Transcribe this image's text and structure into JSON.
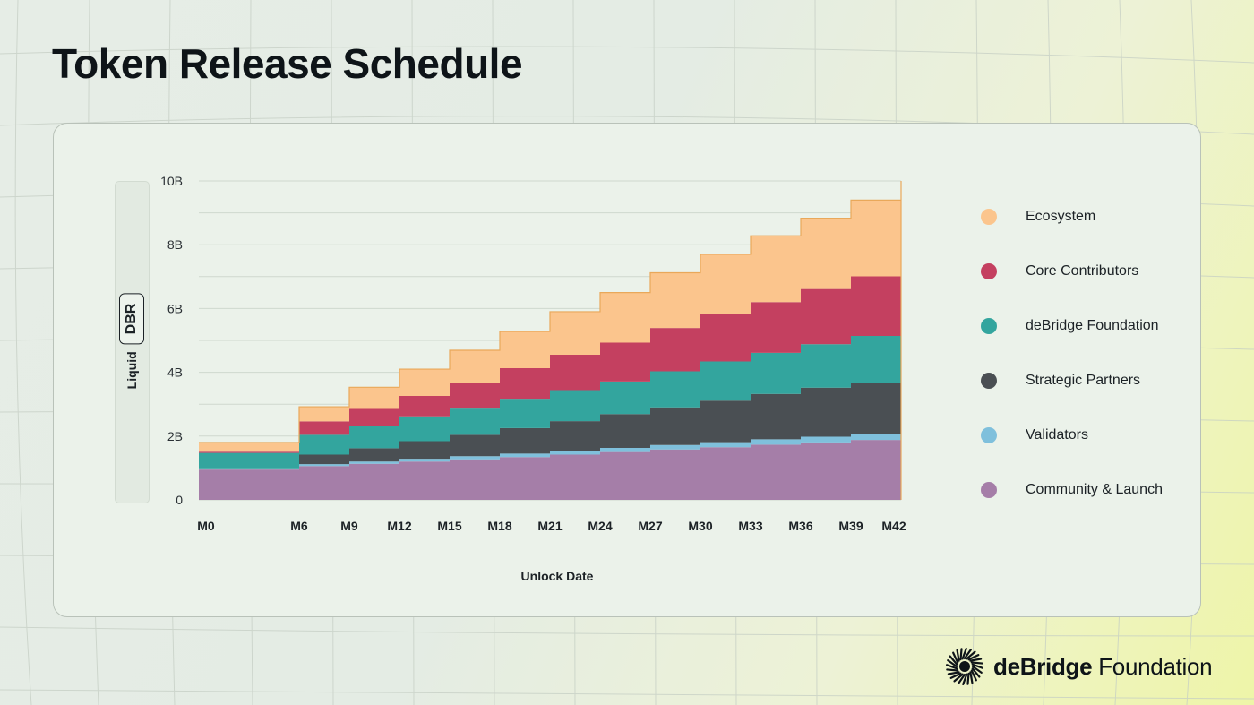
{
  "title": "Token Release Schedule",
  "brand": {
    "name_bold": "deBridge",
    "name_regular": " Foundation"
  },
  "y_axis_label": {
    "prefix": "Liquid",
    "token": "DBR"
  },
  "chart_data": {
    "type": "area",
    "step": true,
    "x": [
      "M0",
      "M1",
      "M2",
      "M3",
      "M4",
      "M5",
      "M6",
      "M7",
      "M8",
      "M9",
      "M10",
      "M11",
      "M12",
      "M13",
      "M14",
      "M15",
      "M16",
      "M17",
      "M18",
      "M19",
      "M20",
      "M21",
      "M22",
      "M23",
      "M24",
      "M25",
      "M26",
      "M27",
      "M28",
      "M29",
      "M30",
      "M31",
      "M32",
      "M33",
      "M34",
      "M35",
      "M36",
      "M37",
      "M38",
      "M39",
      "M40",
      "M41",
      "M42"
    ],
    "xticks": [
      "M0",
      "M6",
      "M9",
      "M12",
      "M15",
      "M18",
      "M21",
      "M24",
      "M27",
      "M30",
      "M33",
      "M36",
      "M39",
      "M42"
    ],
    "xlabel": "Unlock Date",
    "ylabel": "Liquid DBR",
    "yticks": [
      "0",
      "2B",
      "4B",
      "6B",
      "8B",
      "10B"
    ],
    "ylim": [
      0,
      10
    ],
    "unit": "B",
    "series": [
      {
        "name": "Community & Launch",
        "color": "#a57ea8",
        "values": [
          0.95,
          0.95,
          0.95,
          0.95,
          0.95,
          0.95,
          1.06,
          1.06,
          1.06,
          1.13,
          1.13,
          1.13,
          1.2,
          1.2,
          1.2,
          1.27,
          1.27,
          1.27,
          1.34,
          1.34,
          1.34,
          1.42,
          1.42,
          1.42,
          1.5,
          1.5,
          1.5,
          1.58,
          1.58,
          1.58,
          1.65,
          1.65,
          1.65,
          1.73,
          1.73,
          1.73,
          1.8,
          1.8,
          1.8,
          1.88,
          1.88,
          1.88,
          1.95
        ]
      },
      {
        "name": "Validators",
        "color": "#7fc0dc",
        "values": [
          0.04,
          0.04,
          0.04,
          0.04,
          0.04,
          0.04,
          0.06,
          0.06,
          0.06,
          0.07,
          0.07,
          0.07,
          0.09,
          0.09,
          0.09,
          0.1,
          0.1,
          0.1,
          0.11,
          0.11,
          0.11,
          0.12,
          0.12,
          0.12,
          0.13,
          0.13,
          0.13,
          0.14,
          0.14,
          0.14,
          0.16,
          0.16,
          0.16,
          0.17,
          0.17,
          0.17,
          0.18,
          0.18,
          0.18,
          0.2,
          0.2,
          0.2,
          0.22
        ]
      },
      {
        "name": "Strategic Partners",
        "color": "#4a4f53",
        "values": [
          0,
          0,
          0,
          0,
          0,
          0,
          0.3,
          0.3,
          0.3,
          0.42,
          0.42,
          0.42,
          0.55,
          0.55,
          0.55,
          0.67,
          0.67,
          0.67,
          0.8,
          0.8,
          0.8,
          0.93,
          0.93,
          0.93,
          1.06,
          1.06,
          1.06,
          1.18,
          1.18,
          1.18,
          1.3,
          1.3,
          1.3,
          1.42,
          1.42,
          1.42,
          1.54,
          1.54,
          1.54,
          1.6,
          1.6,
          1.6,
          1.7
        ]
      },
      {
        "name": "deBridge Foundation",
        "color": "#33a59e",
        "values": [
          0.48,
          0.48,
          0.48,
          0.48,
          0.48,
          0.48,
          0.62,
          0.62,
          0.62,
          0.7,
          0.7,
          0.7,
          0.78,
          0.78,
          0.78,
          0.82,
          0.82,
          0.82,
          0.92,
          0.92,
          0.92,
          0.97,
          0.97,
          0.97,
          1.02,
          1.02,
          1.02,
          1.13,
          1.13,
          1.13,
          1.23,
          1.23,
          1.23,
          1.29,
          1.29,
          1.29,
          1.36,
          1.36,
          1.36,
          1.46,
          1.46,
          1.46,
          1.55
        ]
      },
      {
        "name": "Core Contributors",
        "color": "#c44060",
        "values": [
          0.04,
          0.04,
          0.04,
          0.04,
          0.04,
          0.04,
          0.42,
          0.42,
          0.42,
          0.53,
          0.53,
          0.53,
          0.64,
          0.64,
          0.64,
          0.82,
          0.82,
          0.82,
          0.96,
          0.96,
          0.96,
          1.11,
          1.11,
          1.11,
          1.22,
          1.22,
          1.22,
          1.36,
          1.36,
          1.36,
          1.49,
          1.49,
          1.49,
          1.59,
          1.59,
          1.59,
          1.73,
          1.73,
          1.73,
          1.87,
          1.87,
          1.87,
          2.05
        ]
      },
      {
        "name": "Ecosystem",
        "color": "#fbc58d",
        "values": [
          0.29,
          0.29,
          0.29,
          0.29,
          0.29,
          0.29,
          0.46,
          0.46,
          0.46,
          0.68,
          0.68,
          0.68,
          0.84,
          0.84,
          0.84,
          1.01,
          1.01,
          1.01,
          1.15,
          1.15,
          1.15,
          1.35,
          1.35,
          1.35,
          1.57,
          1.57,
          1.57,
          1.73,
          1.73,
          1.73,
          1.87,
          1.87,
          1.87,
          2.08,
          2.08,
          2.08,
          2.22,
          2.22,
          2.22,
          2.39,
          2.39,
          2.39,
          2.53
        ]
      }
    ]
  }
}
